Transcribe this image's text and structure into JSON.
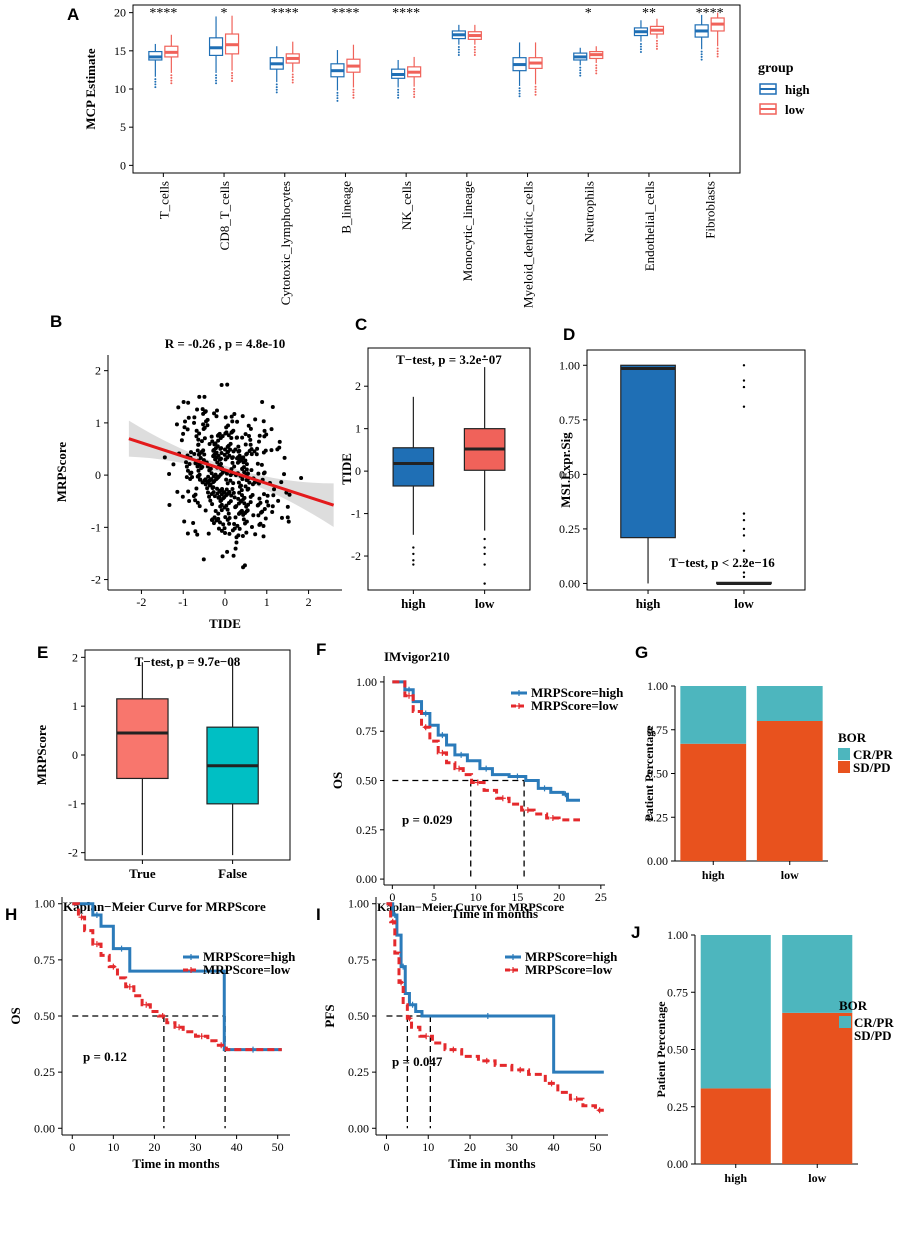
{
  "colors": {
    "high_blue": "#1F6FB5",
    "low_red": "#F0625A",
    "fit_red": "#E31A1C",
    "e_true": "#F8766D",
    "e_false": "#00BFC4",
    "km_high": "#2B7BBA",
    "km_low": "#E4292C",
    "bar_teal": "#4DB6BE",
    "bar_orange": "#E8521E"
  },
  "panels": {
    "A": {
      "label": "A"
    },
    "B": {
      "label": "B"
    },
    "C": {
      "label": "C"
    },
    "D": {
      "label": "D"
    },
    "E": {
      "label": "E"
    },
    "F": {
      "label": "F"
    },
    "G": {
      "label": "G"
    },
    "H": {
      "label": "H"
    },
    "I": {
      "label": "I"
    },
    "J": {
      "label": "J"
    }
  },
  "chart_data": [
    {
      "id": "A",
      "type": "boxplot",
      "ylabel": "MCP Estimate",
      "ylim": [
        0,
        20
      ],
      "yticks": [
        "0",
        "5",
        "10",
        "15",
        "20"
      ],
      "legend": {
        "title": "group",
        "entries": [
          "high",
          "low"
        ],
        "position": "right"
      },
      "categories": [
        "T_cells",
        "CD8_T_cells",
        "Cytotoxic_lymphocytes",
        "B_lineage",
        "NK_cells",
        "Monocytic_lineage",
        "Myeloid_dendritic_cells",
        "Neutrophils",
        "Endothelial_cells",
        "Fibroblasts"
      ],
      "significance": [
        "****",
        "*",
        "****",
        "****",
        "****",
        "",
        "",
        "*",
        "**",
        "****"
      ],
      "series": [
        {
          "name": "high",
          "boxes": [
            [
              13.8,
              14.2,
              14.9,
              11.6,
              15.9
            ],
            [
              14.4,
              15.4,
              16.7,
              12.1,
              19.5
            ],
            [
              12.6,
              13.3,
              14.1,
              10.9,
              15.6
            ],
            [
              11.6,
              12.4,
              13.3,
              9.8,
              15.1
            ],
            [
              11.4,
              11.9,
              12.6,
              10.2,
              13.8
            ],
            [
              16.6,
              17.1,
              17.6,
              15.8,
              18.4
            ],
            [
              12.4,
              13.2,
              14.1,
              10.4,
              16.1
            ],
            [
              13.8,
              14.2,
              14.7,
              13.1,
              15.4
            ],
            [
              17.0,
              17.5,
              18.0,
              16.2,
              19.0
            ],
            [
              16.8,
              17.6,
              18.4,
              15.2,
              19.7
            ]
          ]
        },
        {
          "name": "low",
          "boxes": [
            [
              14.2,
              14.8,
              15.6,
              12.1,
              17.1
            ],
            [
              14.6,
              15.8,
              17.2,
              12.4,
              19.6
            ],
            [
              13.4,
              14.0,
              14.6,
              12.2,
              16.2
            ],
            [
              12.2,
              13.0,
              13.9,
              10.2,
              15.8
            ],
            [
              11.6,
              12.2,
              12.9,
              10.3,
              14.2
            ],
            [
              16.5,
              17.0,
              17.5,
              15.8,
              18.4
            ],
            [
              12.7,
              13.4,
              14.1,
              10.6,
              16.1
            ],
            [
              14.0,
              14.5,
              14.9,
              13.4,
              15.6
            ],
            [
              17.2,
              17.7,
              18.2,
              16.6,
              19.2
            ],
            [
              17.6,
              18.5,
              19.3,
              15.6,
              20.0
            ]
          ]
        }
      ]
    },
    {
      "id": "B",
      "type": "scatter",
      "title": "R = -0.26 , p = 4.8e-10",
      "xlabel": "TIDE",
      "ylabel": "MRPScore",
      "xlim": [
        -2.8,
        2.8
      ],
      "ylim": [
        -2.2,
        2.3
      ],
      "xticks": [
        "-2",
        "-1",
        "0",
        "1",
        "2"
      ],
      "yticks": [
        "-2",
        "-1",
        "0",
        "1",
        "2"
      ],
      "fit": {
        "intercept": 0.1,
        "slope": -0.26
      }
    },
    {
      "id": "C",
      "type": "boxplot",
      "title": "T−test, p = 3.2e−07",
      "ylabel": "TIDE",
      "ylim": [
        -2.8,
        2.9
      ],
      "yticks": [
        "-2",
        "-1",
        "0",
        "1",
        "2"
      ],
      "categories": [
        "high",
        "low"
      ],
      "boxes": [
        [
          -0.35,
          0.18,
          0.55,
          -1.5,
          1.75
        ],
        [
          0.02,
          0.52,
          1.0,
          -1.4,
          2.45
        ]
      ]
    },
    {
      "id": "D",
      "type": "boxplot",
      "annotation": "T−test, p < 2.2e−16",
      "ylabel": "MSI.Expr.Sig",
      "ylim": [
        -0.03,
        1.07
      ],
      "yticks": [
        "0.00",
        "0.25",
        "0.50",
        "0.75",
        "1.00"
      ],
      "categories": [
        "high",
        "low"
      ],
      "boxes": [
        [
          0.21,
          0.985,
          1.0,
          0.0,
          1.0
        ],
        [
          0.0,
          0.0,
          0.005,
          0.0,
          0.0
        ]
      ]
    },
    {
      "id": "E",
      "type": "boxplot",
      "title": "T−test, p = 9.7e−08",
      "ylabel": "MRPScore",
      "ylim": [
        -2.15,
        2.15
      ],
      "yticks": [
        "-2",
        "-1",
        "0",
        "1",
        "2"
      ],
      "categories": [
        "True",
        "False"
      ],
      "boxes": [
        [
          -0.48,
          0.45,
          1.15,
          -2.05,
          1.9
        ],
        [
          -1.0,
          -0.22,
          0.57,
          -2.05,
          1.95
        ]
      ]
    },
    {
      "id": "F",
      "type": "line",
      "title": "IMvigor210",
      "xlabel": "Time in months",
      "ylabel": "OS",
      "xlim": [
        -1,
        25.5
      ],
      "ylim": [
        -0.03,
        1.03
      ],
      "xticks": [
        "0",
        "5",
        "10",
        "15",
        "20",
        "25"
      ],
      "yticks": [
        "0.00",
        "0.25",
        "0.50",
        "0.75",
        "1.00"
      ],
      "pvalue": "p = 0.029",
      "median_lines": [
        9.4,
        15.8
      ],
      "series": [
        {
          "name": "MRPScore=high",
          "x": [
            0,
            1.5,
            2.5,
            3.5,
            4.5,
            5.5,
            6.5,
            7.5,
            9,
            10.5,
            12,
            14,
            16,
            17.5,
            19,
            20.5,
            21,
            22.5
          ],
          "y": [
            1,
            0.96,
            0.9,
            0.84,
            0.78,
            0.73,
            0.68,
            0.63,
            0.6,
            0.56,
            0.53,
            0.52,
            0.5,
            0.46,
            0.44,
            0.43,
            0.4,
            0.4
          ]
        },
        {
          "name": "MRPScore=low",
          "x": [
            0,
            1.5,
            2.5,
            3.5,
            4.5,
            5.5,
            6.5,
            7.5,
            8.5,
            9.5,
            11,
            12.5,
            14,
            15.5,
            17,
            18.5,
            20,
            22.5
          ],
          "y": [
            1,
            0.93,
            0.85,
            0.77,
            0.7,
            0.64,
            0.59,
            0.56,
            0.53,
            0.49,
            0.45,
            0.41,
            0.38,
            0.35,
            0.33,
            0.31,
            0.3,
            0.3
          ]
        }
      ]
    },
    {
      "id": "G",
      "type": "bar",
      "ylabel": "Patient Percentage",
      "ylim": [
        0,
        1
      ],
      "yticks": [
        "0.00",
        "0.25",
        "0.50",
        "0.75",
        "1.00"
      ],
      "categories": [
        "high",
        "low"
      ],
      "legend": {
        "title": "BOR",
        "entries": [
          "CR/PR",
          "SD/PD"
        ]
      },
      "series": [
        {
          "name": "SD/PD",
          "values": [
            0.67,
            0.8
          ]
        },
        {
          "name": "CR/PR",
          "values": [
            0.33,
            0.2
          ]
        }
      ]
    },
    {
      "id": "H",
      "type": "line",
      "title": "Kaplan−Meier Curve for MRPScore",
      "xlabel": "Time in months",
      "ylabel": "OS",
      "xlim": [
        -2.5,
        53
      ],
      "ylim": [
        -0.03,
        1.03
      ],
      "xticks": [
        "0",
        "10",
        "20",
        "30",
        "40",
        "50"
      ],
      "yticks": [
        "0.00",
        "0.25",
        "0.50",
        "0.75",
        "1.00"
      ],
      "pvalue": "p = 0.12",
      "median_lines": [
        22.3,
        37.2
      ],
      "series": [
        {
          "name": "MRPScore=high",
          "x": [
            0,
            5,
            7,
            10,
            14,
            37,
            51
          ],
          "y": [
            1,
            0.95,
            0.9,
            0.8,
            0.7,
            0.35,
            0.35
          ]
        },
        {
          "name": "MRPScore=low",
          "x": [
            0,
            1.5,
            3,
            5,
            7,
            9,
            11,
            13,
            15,
            17,
            19,
            21,
            23,
            25,
            27,
            30,
            33,
            35,
            37.5,
            51
          ],
          "y": [
            1,
            0.94,
            0.88,
            0.82,
            0.77,
            0.72,
            0.67,
            0.63,
            0.59,
            0.55,
            0.52,
            0.5,
            0.47,
            0.45,
            0.43,
            0.41,
            0.39,
            0.37,
            0.35,
            0.35
          ]
        }
      ]
    },
    {
      "id": "I",
      "type": "line",
      "title": "Kaplan−Meier Curve for MRPScore",
      "xlabel": "Time in months",
      "ylabel": "PFS",
      "xlim": [
        -2.5,
        53
      ],
      "ylim": [
        -0.03,
        1.03
      ],
      "xticks": [
        "0",
        "10",
        "20",
        "30",
        "40",
        "50"
      ],
      "yticks": [
        "0.00",
        "0.25",
        "0.50",
        "0.75",
        "1.00"
      ],
      "pvalue": "p = 0.047",
      "median_lines": [
        5.0,
        10.5
      ],
      "series": [
        {
          "name": "MRPScore=high",
          "x": [
            0,
            1.5,
            2.5,
            3.5,
            4.5,
            5.5,
            7,
            8.5,
            40,
            52
          ],
          "y": [
            1,
            0.95,
            0.86,
            0.72,
            0.6,
            0.55,
            0.52,
            0.5,
            0.25,
            0.25
          ]
        },
        {
          "name": "MRPScore=low",
          "x": [
            0,
            1,
            2,
            3,
            4,
            5,
            6,
            8,
            11,
            14,
            18,
            22,
            26,
            30,
            34,
            38,
            41,
            44,
            47,
            50,
            52
          ],
          "y": [
            1,
            0.92,
            0.78,
            0.65,
            0.55,
            0.49,
            0.45,
            0.41,
            0.38,
            0.35,
            0.32,
            0.3,
            0.28,
            0.26,
            0.24,
            0.2,
            0.16,
            0.13,
            0.1,
            0.08,
            0.08
          ]
        }
      ]
    },
    {
      "id": "J",
      "type": "bar",
      "ylabel": "Patient Percentage",
      "ylim": [
        0,
        1
      ],
      "yticks": [
        "0.00",
        "0.25",
        "0.50",
        "0.75",
        "1.00"
      ],
      "categories": [
        "high",
        "low"
      ],
      "legend": {
        "title": "BOR",
        "entries": [
          "CR/PR",
          "SD/PD"
        ]
      },
      "series": [
        {
          "name": "SD/PD",
          "values": [
            0.33,
            0.66
          ]
        },
        {
          "name": "CR/PR",
          "values": [
            0.67,
            0.34
          ]
        }
      ]
    }
  ]
}
